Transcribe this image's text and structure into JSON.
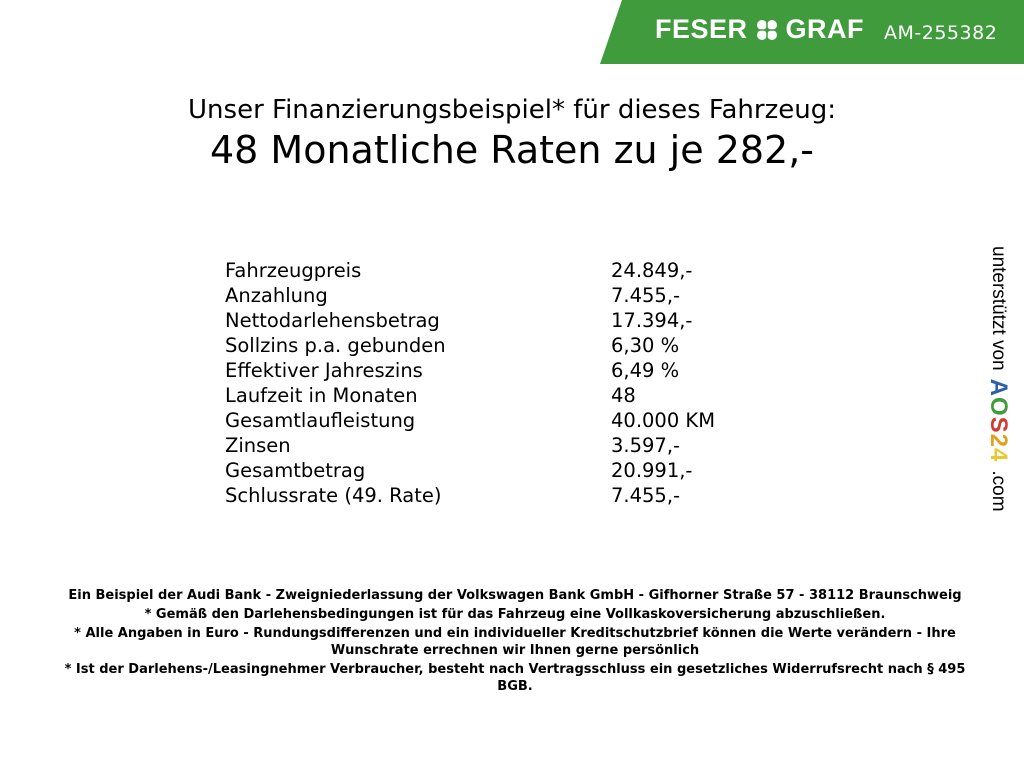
{
  "header": {
    "brand_left": "FESER",
    "brand_right": "GRAF",
    "brand_icon": "clover-icon",
    "vehicle_code": "AM-255382",
    "brand_color": "#3f9b3b"
  },
  "title": {
    "line1": "Unser Finanzierungsbeispiel* für dieses Fahrzeug:",
    "line2": "48 Monatliche Raten zu je 282,-"
  },
  "rows": [
    {
      "label": "Fahrzeugpreis",
      "value": "24.849,-"
    },
    {
      "label": "Anzahlung",
      "value": "7.455,-"
    },
    {
      "label": "Nettodarlehensbetrag",
      "value": "17.394,-"
    },
    {
      "label": "Sollzins p.a. gebunden",
      "value": "6,30 %"
    },
    {
      "label": "Effektiver Jahreszins",
      "value": "6,49 %"
    },
    {
      "label": "Laufzeit in Monaten",
      "value": "48"
    },
    {
      "label": "Gesamtlaufleistung",
      "value": "40.000 KM"
    },
    {
      "label": "Zinsen",
      "value": "3.597,-"
    },
    {
      "label": "Gesamtbetrag",
      "value": "20.991,-"
    },
    {
      "label": "Schlussrate (49. Rate)",
      "value": "7.455,-"
    }
  ],
  "side": {
    "text": "unterstützt von",
    "logo_letters": [
      "A",
      "O",
      "S",
      "2",
      "4"
    ],
    "logo_colors": [
      "#2f5fa8",
      "#3f9b3b",
      "#d03a2f",
      "#e0a020",
      "#e8c830"
    ],
    "domain": ".com"
  },
  "footer": {
    "line1": "Ein Beispiel der Audi Bank - Zweigniederlassung der Volkswagen Bank GmbH - Gifhorner Straße 57 - 38112 Braunschweig",
    "line2": "* Gemäß den Darlehensbedingungen ist für das Fahrzeug eine Vollkaskoversicherung abzuschließen.",
    "line3": "* Alle Angaben in Euro - Rundungsdifferenzen und ein individueller Kreditschutzbrief können die Werte verändern - Ihre Wunschrate errechnen wir Ihnen gerne persönlich",
    "line4": "* Ist der Darlehens-/Leasingnehmer Verbraucher, besteht nach Vertragsschluss ein gesetzliches Widerrufsrecht nach § 495 BGB."
  }
}
